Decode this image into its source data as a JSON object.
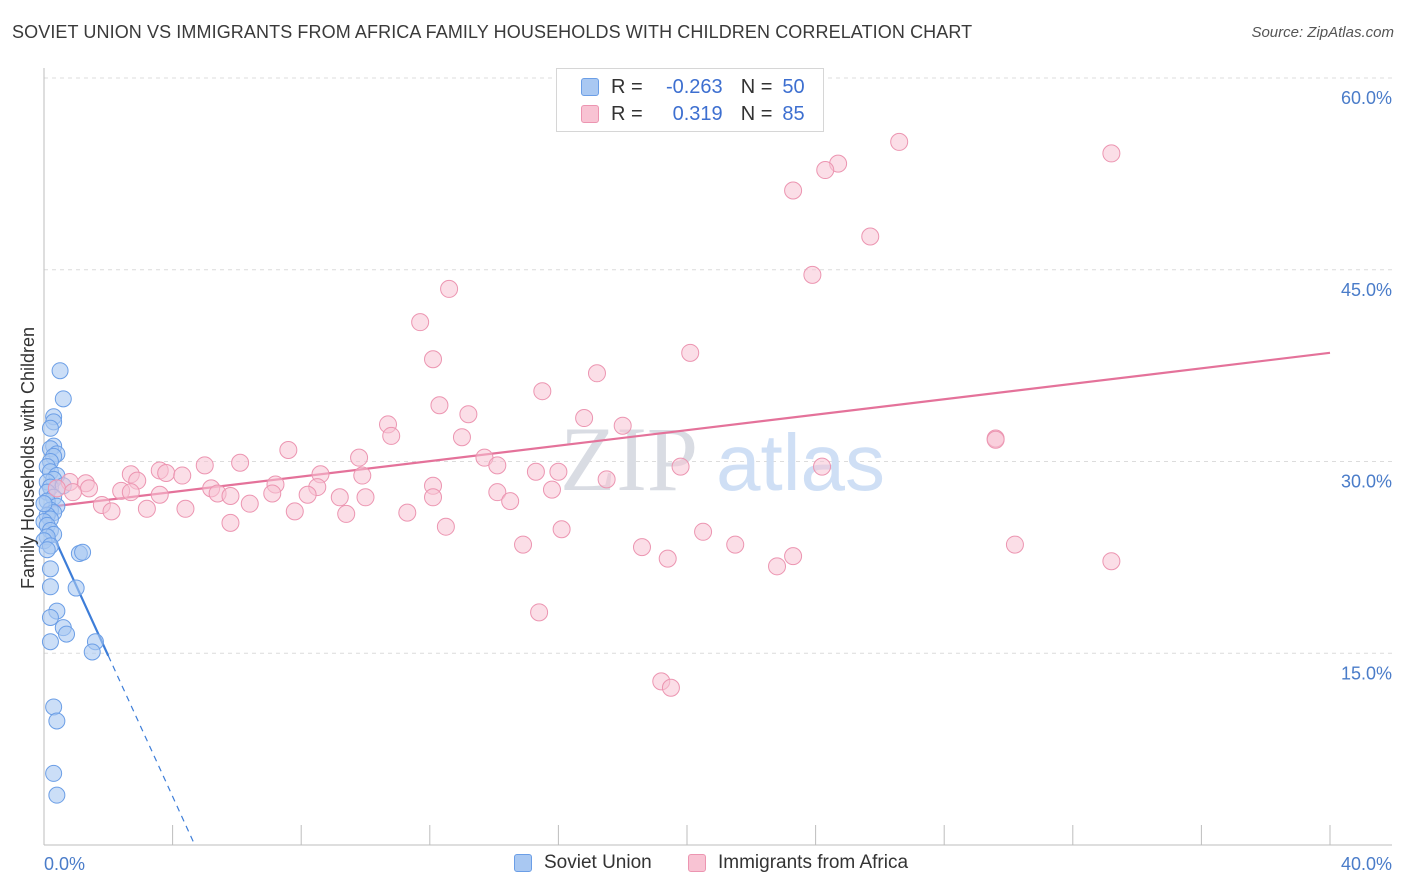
{
  "title": "SOVIET UNION VS IMMIGRANTS FROM AFRICA FAMILY HOUSEHOLDS WITH CHILDREN CORRELATION CHART",
  "source": "Source: ZipAtlas.com",
  "watermark": {
    "zip": "ZIP",
    "atlas": "atlas"
  },
  "legend": {
    "r_label": "R =",
    "n_label": "N =",
    "series1": {
      "r": "-0.263",
      "n": "50"
    },
    "series2": {
      "r": "0.319",
      "n": "85"
    }
  },
  "colors": {
    "blue_fill": "#a9c8f2",
    "blue_stroke": "#6b9ee6",
    "blue_line": "#3d7dd8",
    "pink_fill": "#f8c3d3",
    "pink_stroke": "#ec95b1",
    "pink_line": "#e4729a",
    "tick_text": "#4a7cc9"
  },
  "chart_data": {
    "type": "scatter",
    "title": "SOVIET UNION VS IMMIGRANTS FROM AFRICA FAMILY HOUSEHOLDS WITH CHILDREN CORRELATION CHART",
    "xlabel": "",
    "ylabel": "Family Households with Children",
    "xlim": [
      0,
      40
    ],
    "ylim": [
      0,
      60
    ],
    "x_tick_labels": [
      "0.0%",
      "40.0%"
    ],
    "y_ticks": [
      15,
      30,
      45,
      60
    ],
    "y_tick_labels": [
      "15.0%",
      "30.0%",
      "45.0%",
      "60.0%"
    ],
    "grid": true,
    "legend_position": "bottom",
    "series": [
      {
        "name": "Soviet Union",
        "r": -0.263,
        "n": 50,
        "trend": {
          "x0": 0,
          "y0": 25.8,
          "x1": 2.0,
          "y1": 14.8,
          "dash_to_x": 4.7
        },
        "points": [
          [
            0.5,
            37.1
          ],
          [
            0.6,
            34.9
          ],
          [
            0.3,
            33.5
          ],
          [
            0.3,
            33.1
          ],
          [
            0.2,
            32.6
          ],
          [
            0.3,
            31.2
          ],
          [
            0.2,
            31.0
          ],
          [
            0.4,
            30.6
          ],
          [
            0.3,
            30.4
          ],
          [
            0.2,
            30.0
          ],
          [
            0.1,
            29.6
          ],
          [
            0.2,
            29.2
          ],
          [
            0.4,
            28.9
          ],
          [
            0.3,
            28.6
          ],
          [
            0.1,
            28.4
          ],
          [
            0.2,
            28.0
          ],
          [
            0.6,
            28.1
          ],
          [
            0.1,
            27.6
          ],
          [
            0.3,
            27.2
          ],
          [
            0.1,
            26.9
          ],
          [
            0.4,
            26.5
          ],
          [
            0.2,
            26.2
          ],
          [
            0.3,
            26.0
          ],
          [
            0.1,
            25.8
          ],
          [
            0.2,
            25.5
          ],
          [
            0.0,
            25.3
          ],
          [
            0.1,
            25.0
          ],
          [
            0.2,
            24.6
          ],
          [
            0.3,
            24.3
          ],
          [
            0.1,
            24.1
          ],
          [
            0.0,
            23.8
          ],
          [
            0.2,
            23.4
          ],
          [
            0.1,
            23.1
          ],
          [
            1.1,
            22.8
          ],
          [
            1.2,
            22.9
          ],
          [
            0.2,
            21.6
          ],
          [
            1.0,
            20.1
          ],
          [
            0.2,
            20.2
          ],
          [
            0.4,
            18.3
          ],
          [
            0.2,
            17.8
          ],
          [
            0.6,
            17.0
          ],
          [
            0.7,
            16.5
          ],
          [
            0.2,
            15.9
          ],
          [
            1.6,
            15.9
          ],
          [
            1.5,
            15.1
          ],
          [
            0.3,
            10.8
          ],
          [
            0.4,
            9.7
          ],
          [
            0.3,
            5.6
          ],
          [
            0.4,
            3.9
          ],
          [
            0.0,
            26.7
          ]
        ]
      },
      {
        "name": "Immigrants from Africa",
        "r": 0.319,
        "n": 85,
        "trend": {
          "x0": 0,
          "y0": 26.4,
          "x1": 40,
          "y1": 38.5
        },
        "points": [
          [
            26.6,
            55.0
          ],
          [
            33.2,
            54.1
          ],
          [
            24.7,
            53.3
          ],
          [
            24.3,
            52.8
          ],
          [
            23.3,
            51.2
          ],
          [
            25.7,
            47.6
          ],
          [
            23.9,
            44.6
          ],
          [
            12.6,
            43.5
          ],
          [
            11.7,
            40.9
          ],
          [
            20.1,
            38.5
          ],
          [
            12.1,
            38.0
          ],
          [
            17.2,
            36.9
          ],
          [
            15.5,
            35.5
          ],
          [
            12.3,
            34.4
          ],
          [
            13.2,
            33.7
          ],
          [
            16.8,
            33.4
          ],
          [
            10.7,
            32.9
          ],
          [
            18.0,
            32.8
          ],
          [
            10.8,
            32.0
          ],
          [
            13.0,
            31.9
          ],
          [
            29.6,
            31.8
          ],
          [
            7.6,
            30.9
          ],
          [
            9.8,
            30.3
          ],
          [
            13.7,
            30.3
          ],
          [
            6.1,
            29.9
          ],
          [
            5.0,
            29.7
          ],
          [
            14.1,
            29.7
          ],
          [
            19.8,
            29.6
          ],
          [
            24.2,
            29.6
          ],
          [
            3.6,
            29.3
          ],
          [
            3.8,
            29.1
          ],
          [
            15.3,
            29.2
          ],
          [
            16.0,
            29.2
          ],
          [
            2.7,
            29.0
          ],
          [
            8.6,
            29.0
          ],
          [
            9.9,
            28.9
          ],
          [
            4.3,
            28.9
          ],
          [
            17.5,
            28.6
          ],
          [
            2.9,
            28.5
          ],
          [
            0.8,
            28.4
          ],
          [
            1.3,
            28.3
          ],
          [
            7.2,
            28.2
          ],
          [
            8.5,
            28.0
          ],
          [
            12.1,
            28.1
          ],
          [
            5.2,
            27.9
          ],
          [
            0.4,
            27.9
          ],
          [
            1.4,
            27.9
          ],
          [
            15.8,
            27.8
          ],
          [
            2.4,
            27.7
          ],
          [
            0.9,
            27.6
          ],
          [
            14.1,
            27.6
          ],
          [
            5.4,
            27.5
          ],
          [
            7.1,
            27.5
          ],
          [
            8.2,
            27.4
          ],
          [
            3.6,
            27.4
          ],
          [
            5.8,
            27.3
          ],
          [
            9.2,
            27.2
          ],
          [
            10.0,
            27.2
          ],
          [
            12.1,
            27.2
          ],
          [
            2.7,
            27.6
          ],
          [
            14.5,
            26.9
          ],
          [
            6.4,
            26.7
          ],
          [
            1.8,
            26.6
          ],
          [
            4.4,
            26.3
          ],
          [
            3.2,
            26.3
          ],
          [
            7.8,
            26.1
          ],
          [
            9.4,
            25.9
          ],
          [
            2.1,
            26.1
          ],
          [
            11.3,
            26.0
          ],
          [
            5.8,
            25.2
          ],
          [
            12.5,
            24.9
          ],
          [
            16.1,
            24.7
          ],
          [
            20.5,
            24.5
          ],
          [
            21.5,
            23.5
          ],
          [
            18.6,
            23.3
          ],
          [
            33.2,
            22.2
          ],
          [
            19.4,
            22.4
          ],
          [
            22.8,
            21.8
          ],
          [
            30.2,
            23.5
          ],
          [
            14.9,
            23.5
          ],
          [
            23.3,
            22.6
          ],
          [
            15.4,
            18.2
          ],
          [
            19.2,
            12.8
          ],
          [
            19.5,
            12.3
          ],
          [
            29.6,
            31.7
          ]
        ]
      }
    ]
  },
  "bottom_legend": [
    "Soviet Union",
    "Immigrants from Africa"
  ]
}
